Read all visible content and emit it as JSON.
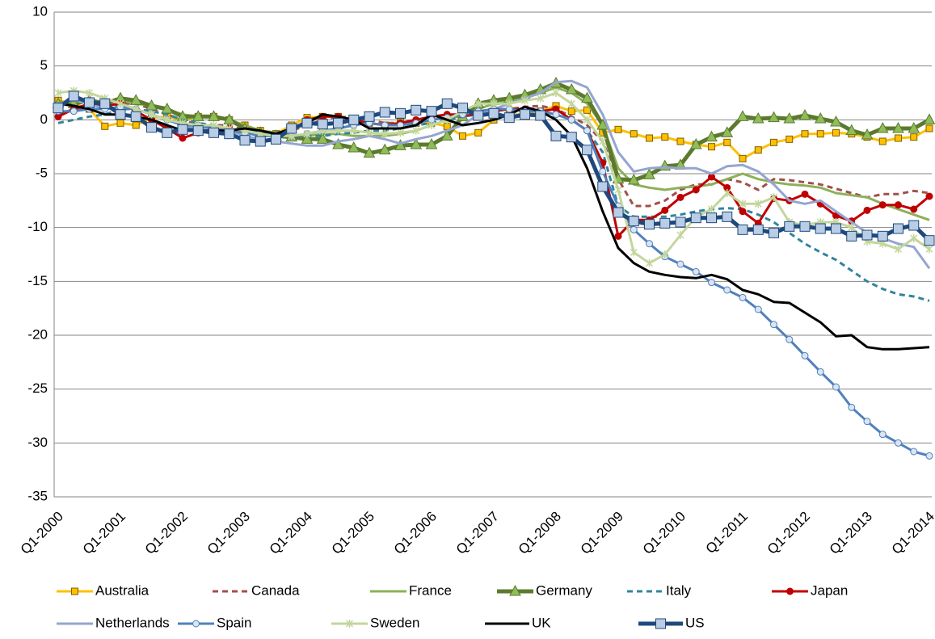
{
  "chart_data": {
    "type": "line",
    "categories": [
      "Q1-2000",
      null,
      null,
      null,
      "Q1-2001",
      null,
      null,
      null,
      "Q1-2002",
      null,
      null,
      null,
      "Q1-2003",
      null,
      null,
      null,
      "Q1-2004",
      null,
      null,
      null,
      "Q1-2005",
      null,
      null,
      null,
      "Q1-2006",
      null,
      null,
      null,
      "Q1-2007",
      null,
      null,
      null,
      "Q1-2008",
      null,
      null,
      null,
      "Q1-2009",
      null,
      null,
      null,
      "Q1-2010",
      null,
      null,
      null,
      "Q1-2011",
      null,
      null,
      null,
      "Q1-2012",
      null,
      null,
      null,
      "Q1-2013",
      null,
      null,
      null,
      "Q1-2014"
    ],
    "ylim": [
      -35,
      10
    ],
    "yticks": [
      -35,
      -30,
      -25,
      -20,
      -15,
      -10,
      -5,
      0,
      5,
      10
    ],
    "grid": true,
    "series": [
      {
        "name": "Australia",
        "color": "#ffc000",
        "marker": "square",
        "dashed": false,
        "values": [
          1.8,
          1.5,
          1.0,
          -0.6,
          -0.3,
          -0.5,
          0.2,
          0.3,
          0.0,
          0.3,
          0.3,
          0.0,
          -0.5,
          -1.0,
          -1.3,
          -0.5,
          0.2,
          0.3,
          0.3,
          0.0,
          -0.3,
          -0.5,
          -0.2,
          -0.3,
          -0.3,
          -0.6,
          -1.5,
          -1.2,
          0.0,
          0.5,
          0.5,
          0.8,
          1.3,
          0.8,
          0.9,
          -1.2,
          -0.9,
          -1.3,
          -1.7,
          -1.6,
          -2.0,
          -2.3,
          -2.5,
          -2.1,
          -3.6,
          -2.8,
          -2.1,
          -1.8,
          -1.3,
          -1.3,
          -1.2,
          -1.3,
          -1.6,
          -2.0,
          -1.7,
          -1.6,
          -0.8
        ]
      },
      {
        "name": "Canada",
        "color": "#a0504a",
        "marker": "none",
        "dashed": true,
        "values": [
          0.5,
          1,
          1,
          1,
          1.5,
          1.5,
          1,
          0.5,
          0,
          -0.5,
          -0.5,
          -0.5,
          -1,
          -1,
          -1.2,
          -1,
          -0.5,
          0,
          0.3,
          0.2,
          0,
          -0.3,
          -0.3,
          -0.3,
          0,
          0.2,
          0.3,
          0.5,
          0.8,
          1,
          1.2,
          1.3,
          1,
          0.3,
          -0.5,
          -2,
          -5.5,
          -8,
          -8,
          -7.5,
          -6.5,
          -6,
          -6,
          -5.5,
          -5.8,
          -6.5,
          -5.5,
          -5.6,
          -5.8,
          -6.0,
          -6.4,
          -6.8,
          -7.2,
          -6.9,
          -6.9,
          -6.6,
          -6.8
        ]
      },
      {
        "name": "France",
        "color": "#8db059",
        "marker": "none",
        "dashed": false,
        "values": [
          1.5,
          1.8,
          2,
          1.5,
          1.8,
          1.5,
          1.3,
          1,
          0.5,
          0.3,
          0.3,
          0,
          -0.5,
          -1,
          -1.2,
          -1.5,
          -1.5,
          -1.3,
          -1.3,
          -1.5,
          -1.5,
          -1.5,
          -1.3,
          -1,
          -0.5,
          0,
          0.5,
          1,
          1.5,
          1.8,
          2,
          2.5,
          3,
          2.5,
          1.5,
          -0.5,
          -4.5,
          -6,
          -6.3,
          -6.5,
          -6.3,
          -6.2,
          -6.0,
          -5.5,
          -5.0,
          -5.5,
          -5.8,
          -6.0,
          -6.1,
          -6.3,
          -6.8,
          -7.0,
          -7.2,
          -7.8,
          -8.3,
          -8.8,
          -9.3
        ]
      },
      {
        "name": "Germany",
        "color": "#5c7a2e",
        "marker": "triangle",
        "dashed": false,
        "values": [
          1.5,
          1.5,
          1.8,
          1.5,
          2.0,
          1.8,
          1.3,
          1.0,
          0.3,
          0.3,
          0.3,
          0.0,
          -0.8,
          -1.2,
          -1.5,
          -1.6,
          -1.8,
          -1.8,
          -2.3,
          -2.6,
          -3.1,
          -2.8,
          -2.4,
          -2.3,
          -2.3,
          -1.5,
          0.3,
          1.5,
          1.8,
          2.0,
          2.3,
          2.8,
          3.4,
          2.8,
          2.0,
          -0.5,
          -5.5,
          -5.6,
          -5.1,
          -4.3,
          -4.2,
          -2.3,
          -1.6,
          -1.2,
          0.3,
          0.1,
          0.2,
          0.1,
          0.4,
          0.1,
          -0.2,
          -1.0,
          -1.4,
          -0.8,
          -0.8,
          -0.8,
          0.0
        ]
      },
      {
        "name": "Italy",
        "color": "#31859c",
        "marker": "none",
        "dashed": true,
        "values": [
          -0.3,
          0,
          0.3,
          0.5,
          1,
          1,
          0.8,
          0.5,
          0,
          -0.3,
          -0.5,
          -0.8,
          -1,
          -1.2,
          -1.5,
          -1.5,
          -1.5,
          -1.5,
          -1.3,
          -1.2,
          -1,
          -1,
          -0.8,
          -0.5,
          -0.3,
          0,
          0.3,
          0.5,
          0.8,
          1,
          1,
          0.8,
          0.5,
          0,
          -1,
          -3,
          -8,
          -9,
          -9,
          -9,
          -8.8,
          -8.5,
          -8.3,
          -8.2,
          -8.3,
          -8.8,
          -9.5,
          -10.5,
          -11.5,
          -12.3,
          -13.0,
          -14.0,
          -15.0,
          -15.7,
          -16.2,
          -16.4,
          -16.8
        ]
      },
      {
        "name": "Japan",
        "color": "#c00000",
        "marker": "circle",
        "dashed": false,
        "values": [
          0.3,
          1.0,
          1.5,
          1.3,
          1.5,
          0.8,
          0.0,
          -0.8,
          -1.7,
          -1.2,
          -1.0,
          -0.8,
          -1.0,
          -1.5,
          -1.5,
          -1.0,
          0.0,
          0.3,
          0.3,
          0.0,
          -0.3,
          -0.5,
          -0.3,
          0.0,
          0.3,
          0.5,
          0.5,
          0.5,
          0.8,
          1.0,
          1.0,
          0.8,
          1.0,
          0.0,
          -1.0,
          -4.0,
          -10.8,
          -9.3,
          -9.3,
          -8.4,
          -7.2,
          -6.5,
          -5.3,
          -6.3,
          -8.5,
          -9.6,
          -7.3,
          -7.5,
          -6.9,
          -7.8,
          -8.9,
          -9.4,
          -8.4,
          -7.9,
          -7.9,
          -8.3,
          -7.1
        ]
      },
      {
        "name": "Netherlands",
        "color": "#95a5d0",
        "marker": "none",
        "dashed": false,
        "values": [
          1.5,
          1.8,
          1.5,
          1.0,
          1.2,
          1.0,
          0.5,
          0,
          -0.5,
          -0.8,
          -0.8,
          -1.0,
          -1.5,
          -1.8,
          -2.0,
          -2.2,
          -2.4,
          -2.4,
          -2.0,
          -1.8,
          -1.5,
          -1.8,
          -2.2,
          -1.8,
          -1.5,
          -1.0,
          -0.5,
          0.5,
          1.0,
          1.5,
          2.0,
          2.5,
          3.5,
          3.6,
          3.0,
          0.5,
          -3.0,
          -4.8,
          -4.5,
          -4.4,
          -4.5,
          -4.5,
          -5.0,
          -4.3,
          -4.2,
          -4.8,
          -6.0,
          -7.5,
          -7.8,
          -7.5,
          -8.5,
          -9.5,
          -10.5,
          -11.0,
          -11.5,
          -11.8,
          -13.8
        ]
      },
      {
        "name": "Spain",
        "color": "#4f81bd",
        "marker": "circle",
        "dashed": false,
        "values": [
          0.8,
          0.8,
          1.0,
          1.0,
          1.2,
          1.0,
          0.5,
          0.0,
          -0.5,
          -0.5,
          -0.8,
          -1.0,
          -1.2,
          -1.5,
          -1.5,
          -1.5,
          -1.3,
          -1.0,
          -0.8,
          -0.5,
          -0.3,
          -0.5,
          -0.5,
          -0.3,
          0.0,
          0.2,
          0.5,
          0.8,
          1.0,
          1.0,
          0.8,
          0.8,
          0.5,
          0.0,
          -1.0,
          -4.8,
          -8.0,
          -10.2,
          -11.5,
          -12.7,
          -13.4,
          -14.1,
          -15.1,
          -15.8,
          -16.5,
          -17.6,
          -19.0,
          -20.4,
          -21.9,
          -23.4,
          -24.8,
          -26.7,
          -28.0,
          -29.2,
          -30.0,
          -30.8,
          -31.2
        ]
      },
      {
        "name": "Sweden",
        "color": "#c3d69b",
        "marker": "star",
        "dashed": false,
        "values": [
          2.5,
          2.7,
          2.5,
          2.0,
          1.5,
          1.0,
          0.5,
          0.0,
          -0.3,
          -0.5,
          -0.5,
          -0.8,
          -1.0,
          -1.3,
          -1.5,
          -1.5,
          -1.3,
          -1.0,
          -1.0,
          -1.0,
          -1.2,
          -1.3,
          -1.2,
          -1.0,
          -0.5,
          0.0,
          0.8,
          1.5,
          1.5,
          1.5,
          1.8,
          2.0,
          2.5,
          1.5,
          0.0,
          -2.0,
          -6.5,
          -12.3,
          -13.3,
          -12.5,
          -10.7,
          -9.0,
          -8.3,
          -6.8,
          -7.8,
          -7.8,
          -7.2,
          -9.5,
          -9.8,
          -9.5,
          -9.5,
          -10.0,
          -11.3,
          -11.5,
          -12.0,
          -11.0,
          -12.0
        ]
      },
      {
        "name": "UK",
        "color": "#000000",
        "marker": "none",
        "dashed": false,
        "values": [
          1.5,
          1.3,
          1.0,
          0.5,
          0.5,
          0.3,
          0.0,
          -0.5,
          -1.0,
          -1.0,
          -1.0,
          -1.0,
          -0.8,
          -1.0,
          -1.3,
          -0.8,
          -0.3,
          0.5,
          0.3,
          0.0,
          -0.8,
          -0.8,
          -0.8,
          -0.5,
          0.5,
          0.0,
          -0.5,
          -0.3,
          0.0,
          0.5,
          1.2,
          0.8,
          0.0,
          -1.5,
          -4.5,
          -8.5,
          -11.9,
          -13.3,
          -14.1,
          -14.4,
          -14.6,
          -14.7,
          -14.4,
          -14.8,
          -15.8,
          -16.2,
          -16.9,
          -17.0,
          -17.9,
          -18.8,
          -20.1,
          -20.0,
          -21.1,
          -21.3,
          -21.3,
          -21.2,
          -21.1
        ]
      },
      {
        "name": "US",
        "color": "#1f497d",
        "marker": "square",
        "dashed": false,
        "values": [
          1.1,
          2.2,
          1.6,
          1.5,
          0.5,
          0.3,
          -0.7,
          -1.2,
          -0.9,
          -1.0,
          -1.2,
          -1.3,
          -1.9,
          -2.0,
          -1.8,
          -0.8,
          -0.3,
          -0.4,
          -0.3,
          0.0,
          0.3,
          0.7,
          0.6,
          0.9,
          0.8,
          1.5,
          1.1,
          0.4,
          0.6,
          0.2,
          0.5,
          0.4,
          -1.5,
          -1.6,
          -2.8,
          -6.2,
          -8.6,
          -9.4,
          -9.7,
          -9.6,
          -9.5,
          -9.1,
          -9.1,
          -9.0,
          -10.2,
          -10.2,
          -10.5,
          -9.9,
          -9.9,
          -10.1,
          -10.1,
          -10.8,
          -10.7,
          -10.8,
          -10.1,
          -9.8,
          -11.2
        ]
      }
    ]
  }
}
